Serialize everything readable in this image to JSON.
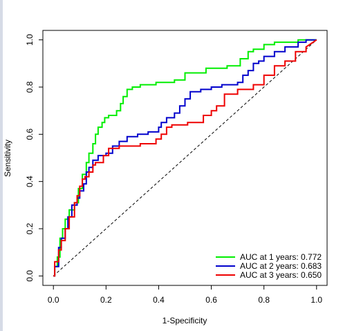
{
  "chart_data": {
    "type": "line",
    "title": "",
    "xlabel": "1-Specificity",
    "ylabel": "Sensitivity",
    "xlim": [
      -0.04,
      1.04
    ],
    "ylim": [
      -0.04,
      1.04
    ],
    "xticks": [
      "0.0",
      "0.2",
      "0.4",
      "0.6",
      "0.8",
      "1.0"
    ],
    "yticks": [
      "0.0",
      "0.2",
      "0.4",
      "0.6",
      "0.8",
      "1.0"
    ],
    "grid": false,
    "legend_position": "bottom-right",
    "reference_line": {
      "style": "dashed",
      "color": "#000000",
      "from": [
        0,
        0
      ],
      "to": [
        1,
        1
      ]
    },
    "series": [
      {
        "name": "AUC at 1 years: 0.772",
        "color": "#00ee00",
        "x": [
          0.0,
          0.005,
          0.005,
          0.015,
          0.015,
          0.025,
          0.025,
          0.035,
          0.035,
          0.045,
          0.045,
          0.06,
          0.06,
          0.08,
          0.08,
          0.095,
          0.095,
          0.11,
          0.11,
          0.125,
          0.125,
          0.135,
          0.135,
          0.15,
          0.15,
          0.16,
          0.16,
          0.17,
          0.17,
          0.185,
          0.185,
          0.195,
          0.195,
          0.21,
          0.21,
          0.24,
          0.24,
          0.255,
          0.255,
          0.265,
          0.265,
          0.28,
          0.28,
          0.3,
          0.3,
          0.33,
          0.33,
          0.39,
          0.39,
          0.46,
          0.46,
          0.5,
          0.5,
          0.58,
          0.58,
          0.66,
          0.66,
          0.71,
          0.71,
          0.74,
          0.74,
          0.76,
          0.76,
          0.8,
          0.8,
          0.84,
          0.84,
          0.93,
          0.93,
          0.97,
          0.97,
          1.0
        ],
        "y": [
          0.0,
          0.0,
          0.04,
          0.04,
          0.08,
          0.08,
          0.16,
          0.16,
          0.2,
          0.2,
          0.24,
          0.24,
          0.28,
          0.28,
          0.31,
          0.31,
          0.37,
          0.37,
          0.43,
          0.43,
          0.48,
          0.48,
          0.52,
          0.52,
          0.56,
          0.56,
          0.6,
          0.6,
          0.63,
          0.63,
          0.65,
          0.65,
          0.67,
          0.67,
          0.68,
          0.68,
          0.7,
          0.7,
          0.73,
          0.73,
          0.76,
          0.76,
          0.79,
          0.79,
          0.8,
          0.8,
          0.81,
          0.81,
          0.82,
          0.82,
          0.83,
          0.83,
          0.86,
          0.86,
          0.88,
          0.88,
          0.89,
          0.89,
          0.92,
          0.92,
          0.95,
          0.95,
          0.96,
          0.96,
          0.98,
          0.98,
          0.99,
          0.99,
          1.0,
          1.0,
          1.0,
          1.0
        ]
      },
      {
        "name": "AUC at 2 years: 0.683",
        "color": "#0000cc",
        "x": [
          0.0,
          0.005,
          0.005,
          0.02,
          0.02,
          0.03,
          0.03,
          0.045,
          0.045,
          0.055,
          0.055,
          0.07,
          0.07,
          0.09,
          0.09,
          0.1,
          0.1,
          0.115,
          0.115,
          0.125,
          0.125,
          0.135,
          0.135,
          0.15,
          0.15,
          0.17,
          0.17,
          0.2,
          0.2,
          0.225,
          0.225,
          0.25,
          0.25,
          0.28,
          0.28,
          0.32,
          0.32,
          0.36,
          0.36,
          0.4,
          0.4,
          0.41,
          0.41,
          0.43,
          0.43,
          0.46,
          0.46,
          0.48,
          0.48,
          0.5,
          0.5,
          0.52,
          0.52,
          0.56,
          0.56,
          0.6,
          0.6,
          0.64,
          0.64,
          0.7,
          0.7,
          0.72,
          0.72,
          0.74,
          0.74,
          0.76,
          0.76,
          0.78,
          0.78,
          0.8,
          0.8,
          0.84,
          0.84,
          0.88,
          0.88,
          0.93,
          0.93,
          0.96,
          0.96,
          1.0
        ],
        "y": [
          0.0,
          0.0,
          0.04,
          0.04,
          0.12,
          0.12,
          0.16,
          0.16,
          0.2,
          0.2,
          0.25,
          0.25,
          0.3,
          0.3,
          0.33,
          0.33,
          0.36,
          0.36,
          0.39,
          0.39,
          0.44,
          0.44,
          0.46,
          0.46,
          0.49,
          0.49,
          0.51,
          0.51,
          0.52,
          0.52,
          0.55,
          0.55,
          0.57,
          0.57,
          0.59,
          0.59,
          0.6,
          0.6,
          0.61,
          0.61,
          0.63,
          0.63,
          0.65,
          0.65,
          0.67,
          0.67,
          0.69,
          0.69,
          0.72,
          0.72,
          0.75,
          0.75,
          0.78,
          0.78,
          0.79,
          0.79,
          0.8,
          0.8,
          0.81,
          0.81,
          0.82,
          0.82,
          0.85,
          0.85,
          0.87,
          0.87,
          0.9,
          0.9,
          0.91,
          0.91,
          0.93,
          0.93,
          0.95,
          0.95,
          0.97,
          0.97,
          0.99,
          0.99,
          1.0,
          1.0
        ]
      },
      {
        "name": "AUC at 3 years: 0.650",
        "color": "#ee0000",
        "x": [
          0.0,
          0.005,
          0.005,
          0.02,
          0.02,
          0.03,
          0.03,
          0.045,
          0.045,
          0.06,
          0.06,
          0.08,
          0.08,
          0.09,
          0.09,
          0.1,
          0.1,
          0.11,
          0.11,
          0.12,
          0.12,
          0.135,
          0.135,
          0.15,
          0.15,
          0.16,
          0.16,
          0.19,
          0.19,
          0.21,
          0.21,
          0.25,
          0.25,
          0.33,
          0.33,
          0.39,
          0.39,
          0.41,
          0.41,
          0.43,
          0.43,
          0.45,
          0.45,
          0.51,
          0.51,
          0.57,
          0.57,
          0.6,
          0.6,
          0.62,
          0.62,
          0.65,
          0.65,
          0.7,
          0.7,
          0.76,
          0.76,
          0.8,
          0.8,
          0.84,
          0.84,
          0.88,
          0.88,
          0.92,
          0.92,
          0.96,
          0.96,
          1.0
        ],
        "y": [
          0.0,
          0.0,
          0.06,
          0.06,
          0.11,
          0.11,
          0.15,
          0.15,
          0.2,
          0.2,
          0.25,
          0.25,
          0.31,
          0.31,
          0.34,
          0.34,
          0.38,
          0.38,
          0.41,
          0.41,
          0.42,
          0.42,
          0.44,
          0.44,
          0.47,
          0.47,
          0.48,
          0.48,
          0.51,
          0.51,
          0.54,
          0.54,
          0.55,
          0.55,
          0.56,
          0.56,
          0.58,
          0.58,
          0.6,
          0.6,
          0.63,
          0.63,
          0.64,
          0.64,
          0.65,
          0.65,
          0.68,
          0.68,
          0.7,
          0.7,
          0.72,
          0.72,
          0.77,
          0.77,
          0.79,
          0.79,
          0.81,
          0.81,
          0.85,
          0.85,
          0.89,
          0.89,
          0.91,
          0.91,
          0.95,
          0.95,
          0.97,
          1.0
        ]
      }
    ]
  }
}
